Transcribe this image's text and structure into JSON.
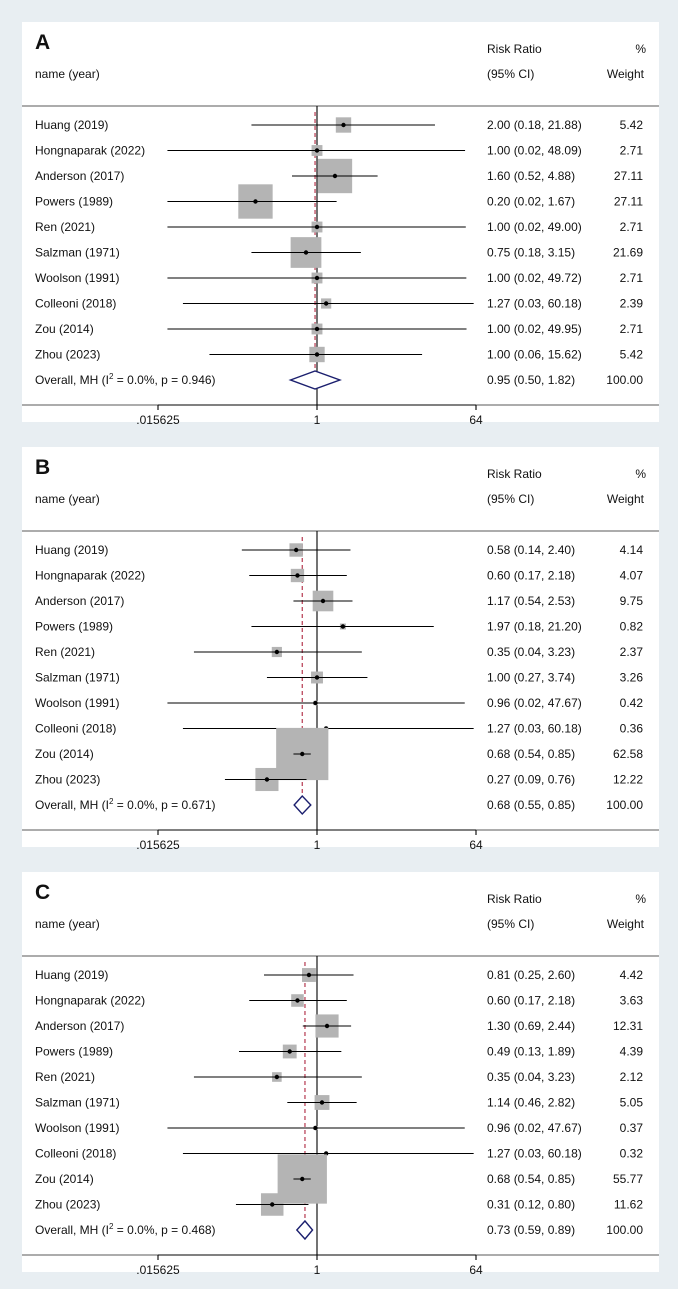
{
  "chart_data": [
    {
      "type": "forest",
      "panel_label": "A",
      "header": {
        "left": "name (year)",
        "measure": "Risk Ratio",
        "ci": "(95% CI)",
        "pct": "%",
        "weight": "Weight"
      },
      "xscale": "log",
      "xlim": [
        0.015625,
        64
      ],
      "xticks": [
        {
          "v": 0.015625,
          "label": ".015625"
        },
        {
          "v": 1,
          "label": "1"
        },
        {
          "v": 64,
          "label": "64"
        }
      ],
      "reference_line": 1,
      "studies": [
        {
          "name": "Huang (2019)",
          "rr": 2.0,
          "lo": 0.18,
          "hi": 21.88,
          "ci_text": "2.00 (0.18, 21.88)",
          "weight": "5.42"
        },
        {
          "name": "Hongnaparak  (2022)",
          "rr": 1.0,
          "lo": 0.02,
          "hi": 48.09,
          "ci_text": "1.00 (0.02, 48.09)",
          "weight": "2.71"
        },
        {
          "name": "Anderson (2017)",
          "rr": 1.6,
          "lo": 0.52,
          "hi": 4.88,
          "ci_text": "1.60 (0.52, 4.88)",
          "weight": "27.11"
        },
        {
          "name": "Powers (1989)",
          "rr": 0.2,
          "lo": 0.02,
          "hi": 1.67,
          "ci_text": "0.20 (0.02, 1.67)",
          "weight": "27.11"
        },
        {
          "name": "Ren (2021)",
          "rr": 1.0,
          "lo": 0.02,
          "hi": 49.0,
          "ci_text": "1.00 (0.02, 49.00)",
          "weight": "2.71"
        },
        {
          "name": "Salzman (1971)",
          "rr": 0.75,
          "lo": 0.18,
          "hi": 3.15,
          "ci_text": "0.75 (0.18, 3.15)",
          "weight": "21.69"
        },
        {
          "name": "Woolson (1991)",
          "rr": 1.0,
          "lo": 0.02,
          "hi": 49.72,
          "ci_text": "1.00 (0.02, 49.72)",
          "weight": "2.71"
        },
        {
          "name": "Colleoni (2018)",
          "rr": 1.27,
          "lo": 0.03,
          "hi": 60.18,
          "ci_text": "1.27 (0.03, 60.18)",
          "weight": "2.39"
        },
        {
          "name": "Zou (2014)",
          "rr": 1.0,
          "lo": 0.02,
          "hi": 49.95,
          "ci_text": "1.00 (0.02, 49.95)",
          "weight": "2.71"
        },
        {
          "name": "Zhou (2023)",
          "rr": 1.0,
          "lo": 0.06,
          "hi": 15.62,
          "ci_text": "1.00 (0.06, 15.62)",
          "weight": "5.42"
        }
      ],
      "overall": {
        "name": "Overall, MH (I",
        "sup": "2",
        "stat": " = 0.0%, p = 0.946)",
        "rr": 0.95,
        "lo": 0.5,
        "hi": 1.82,
        "ci_text": "0.95 (0.50, 1.82)",
        "weight": "100.00"
      }
    },
    {
      "type": "forest",
      "panel_label": "B",
      "header": {
        "left": "name (year)",
        "measure": "Risk Ratio",
        "ci": "(95% CI)",
        "pct": "%",
        "weight": "Weight"
      },
      "xscale": "log",
      "xlim": [
        0.015625,
        64
      ],
      "xticks": [
        {
          "v": 0.015625,
          "label": ".015625"
        },
        {
          "v": 1,
          "label": "1"
        },
        {
          "v": 64,
          "label": "64"
        }
      ],
      "reference_line": 1,
      "studies": [
        {
          "name": "Huang (2019)",
          "rr": 0.58,
          "lo": 0.14,
          "hi": 2.4,
          "ci_text": "0.58 (0.14, 2.40)",
          "weight": "4.14"
        },
        {
          "name": "Hongnaparak  (2022)",
          "rr": 0.6,
          "lo": 0.17,
          "hi": 2.18,
          "ci_text": "0.60 (0.17, 2.18)",
          "weight": "4.07"
        },
        {
          "name": "Anderson (2017)",
          "rr": 1.17,
          "lo": 0.54,
          "hi": 2.53,
          "ci_text": "1.17 (0.54, 2.53)",
          "weight": "9.75"
        },
        {
          "name": "Powers (1989)",
          "rr": 1.97,
          "lo": 0.18,
          "hi": 21.2,
          "ci_text": "1.97 (0.18, 21.20)",
          "weight": "0.82"
        },
        {
          "name": "Ren (2021)",
          "rr": 0.35,
          "lo": 0.04,
          "hi": 3.23,
          "ci_text": "0.35 (0.04, 3.23)",
          "weight": "2.37"
        },
        {
          "name": "Salzman (1971)",
          "rr": 1.0,
          "lo": 0.27,
          "hi": 3.74,
          "ci_text": "1.00 (0.27, 3.74)",
          "weight": "3.26"
        },
        {
          "name": "Woolson (1991)",
          "rr": 0.96,
          "lo": 0.02,
          "hi": 47.67,
          "ci_text": "0.96 (0.02, 47.67)",
          "weight": "0.42"
        },
        {
          "name": "Colleoni (2018)",
          "rr": 1.27,
          "lo": 0.03,
          "hi": 60.18,
          "ci_text": "1.27 (0.03, 60.18)",
          "weight": "0.36"
        },
        {
          "name": "Zou (2014)",
          "rr": 0.68,
          "lo": 0.54,
          "hi": 0.85,
          "ci_text": "0.68 (0.54, 0.85)",
          "weight": "62.58"
        },
        {
          "name": "Zhou (2023)",
          "rr": 0.27,
          "lo": 0.09,
          "hi": 0.76,
          "ci_text": "0.27 (0.09, 0.76)",
          "weight": "12.22"
        }
      ],
      "overall": {
        "name": "Overall, MH (I",
        "sup": "2",
        "stat": " = 0.0%, p = 0.671)",
        "rr": 0.68,
        "lo": 0.55,
        "hi": 0.85,
        "ci_text": "0.68 (0.55, 0.85)",
        "weight": "100.00"
      }
    },
    {
      "type": "forest",
      "panel_label": "C",
      "header": {
        "left": "name (year)",
        "measure": "Risk Ratio",
        "ci": "(95% CI)",
        "pct": "%",
        "weight": "Weight"
      },
      "xscale": "log",
      "xlim": [
        0.015625,
        64
      ],
      "xticks": [
        {
          "v": 0.015625,
          "label": ".015625"
        },
        {
          "v": 1,
          "label": "1"
        },
        {
          "v": 64,
          "label": "64"
        }
      ],
      "reference_line": 1,
      "studies": [
        {
          "name": "Huang (2019)",
          "rr": 0.81,
          "lo": 0.25,
          "hi": 2.6,
          "ci_text": "0.81 (0.25, 2.60)",
          "weight": "4.42"
        },
        {
          "name": "Hongnaparak  (2022)",
          "rr": 0.6,
          "lo": 0.17,
          "hi": 2.18,
          "ci_text": "0.60 (0.17, 2.18)",
          "weight": "3.63"
        },
        {
          "name": "Anderson (2017)",
          "rr": 1.3,
          "lo": 0.69,
          "hi": 2.44,
          "ci_text": "1.30 (0.69, 2.44)",
          "weight": "12.31"
        },
        {
          "name": "Powers (1989)",
          "rr": 0.49,
          "lo": 0.13,
          "hi": 1.89,
          "ci_text": "0.49 (0.13, 1.89)",
          "weight": "4.39"
        },
        {
          "name": "Ren (2021)",
          "rr": 0.35,
          "lo": 0.04,
          "hi": 3.23,
          "ci_text": "0.35 (0.04, 3.23)",
          "weight": "2.12"
        },
        {
          "name": "Salzman (1971)",
          "rr": 1.14,
          "lo": 0.46,
          "hi": 2.82,
          "ci_text": "1.14 (0.46, 2.82)",
          "weight": "5.05"
        },
        {
          "name": "Woolson (1991)",
          "rr": 0.96,
          "lo": 0.02,
          "hi": 47.67,
          "ci_text": "0.96 (0.02, 47.67)",
          "weight": "0.37"
        },
        {
          "name": "Colleoni (2018)",
          "rr": 1.27,
          "lo": 0.03,
          "hi": 60.18,
          "ci_text": "1.27 (0.03, 60.18)",
          "weight": "0.32"
        },
        {
          "name": "Zou (2014)",
          "rr": 0.68,
          "lo": 0.54,
          "hi": 0.85,
          "ci_text": "0.68 (0.54, 0.85)",
          "weight": "55.77"
        },
        {
          "name": "Zhou (2023)",
          "rr": 0.31,
          "lo": 0.12,
          "hi": 0.8,
          "ci_text": "0.31 (0.12, 0.80)",
          "weight": "11.62"
        }
      ],
      "overall": {
        "name": "Overall, MH (I",
        "sup": "2",
        "stat": " = 0.0%, p = 0.468)",
        "rr": 0.73,
        "lo": 0.59,
        "hi": 0.89,
        "ci_text": "0.73 (0.59, 0.89)",
        "weight": "100.00"
      }
    }
  ],
  "colors": {
    "page_bg": "#e8eef2",
    "panel_bg": "#ffffff",
    "weight_box": "#b4b4b4",
    "diamond": "#1b1f6e",
    "overall_line": "#b5384f",
    "text": "#111111"
  }
}
